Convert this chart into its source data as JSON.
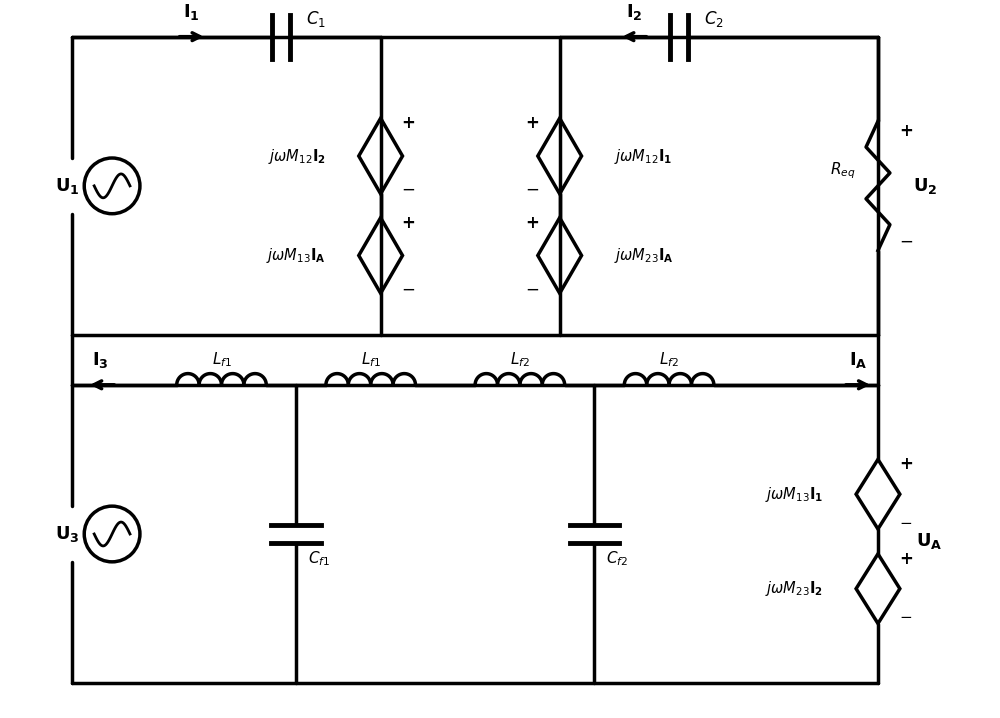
{
  "bg_color": "#ffffff",
  "line_color": "#000000",
  "lw": 2.5,
  "fig_width": 10.0,
  "fig_height": 7.18
}
